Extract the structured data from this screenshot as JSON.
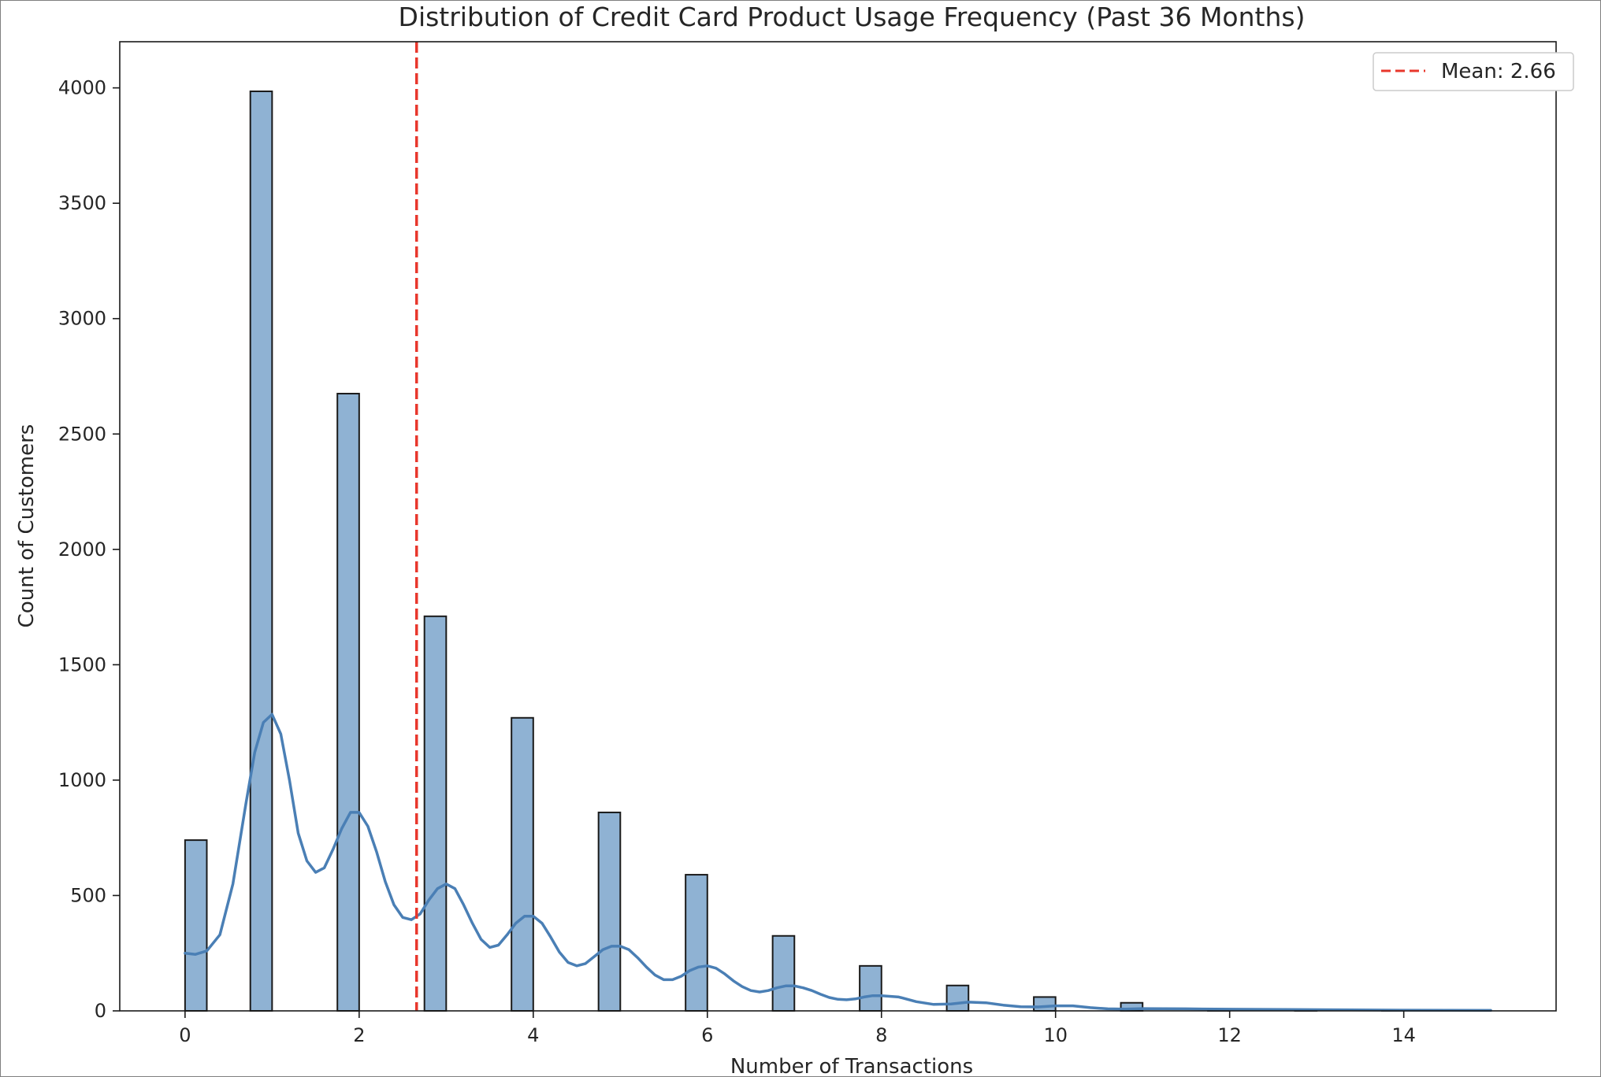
{
  "chart_data": {
    "type": "histogram",
    "title": "Distribution of Credit Card Product Usage Frequency (Past 36 Months)",
    "xlabel": "Number of Transactions",
    "ylabel": "Count of Customers",
    "xlim": [
      -0.75,
      15.75
    ],
    "ylim": [
      0,
      4200
    ],
    "xticks": [
      0,
      2,
      4,
      6,
      8,
      10,
      12,
      14
    ],
    "yticks": [
      0,
      500,
      1000,
      1500,
      2000,
      2500,
      3000,
      3500,
      4000
    ],
    "grid": false,
    "bar_color": "#8fb2d3",
    "bar_edge_color": "#1a1a1a",
    "kde_color": "#4a7fb5",
    "bins": [
      {
        "x0": 0,
        "x1": 0.25,
        "count": 740
      },
      {
        "x0": 0.75,
        "x1": 1.0,
        "count": 3985
      },
      {
        "x0": 1.75,
        "x1": 2.0,
        "count": 2675
      },
      {
        "x0": 2.75,
        "x1": 3.0,
        "count": 1710
      },
      {
        "x0": 3.75,
        "x1": 4.0,
        "count": 1270
      },
      {
        "x0": 4.75,
        "x1": 5.0,
        "count": 860
      },
      {
        "x0": 5.75,
        "x1": 6.0,
        "count": 590
      },
      {
        "x0": 6.75,
        "x1": 7.0,
        "count": 325
      },
      {
        "x0": 7.75,
        "x1": 8.0,
        "count": 195
      },
      {
        "x0": 8.75,
        "x1": 9.0,
        "count": 110
      },
      {
        "x0": 9.75,
        "x1": 10.0,
        "count": 60
      },
      {
        "x0": 10.75,
        "x1": 11.0,
        "count": 35
      },
      {
        "x0": 11.75,
        "x1": 12.0,
        "count": 8
      },
      {
        "x0": 12.75,
        "x1": 13.0,
        "count": 3
      },
      {
        "x0": 13.75,
        "x1": 14.0,
        "count": 2
      },
      {
        "x0": 14.75,
        "x1": 15.0,
        "count": 1
      }
    ],
    "kde": {
      "x": [
        0,
        0.12,
        0.25,
        0.4,
        0.55,
        0.7,
        0.8,
        0.9,
        1.0,
        1.1,
        1.2,
        1.3,
        1.4,
        1.5,
        1.6,
        1.7,
        1.8,
        1.9,
        2.0,
        2.1,
        2.2,
        2.3,
        2.4,
        2.5,
        2.6,
        2.7,
        2.8,
        2.9,
        3.0,
        3.1,
        3.2,
        3.3,
        3.4,
        3.5,
        3.6,
        3.7,
        3.8,
        3.9,
        4.0,
        4.1,
        4.2,
        4.3,
        4.4,
        4.5,
        4.6,
        4.7,
        4.8,
        4.9,
        5.0,
        5.1,
        5.2,
        5.3,
        5.4,
        5.5,
        5.6,
        5.7,
        5.8,
        5.9,
        6.0,
        6.1,
        6.2,
        6.3,
        6.4,
        6.5,
        6.6,
        6.7,
        6.8,
        6.9,
        7.0,
        7.1,
        7.2,
        7.3,
        7.4,
        7.5,
        7.6,
        7.7,
        7.8,
        7.9,
        8.0,
        8.2,
        8.4,
        8.6,
        8.8,
        9.0,
        9.2,
        9.4,
        9.6,
        9.8,
        10.0,
        10.2,
        10.4,
        10.6,
        10.8,
        11.0,
        11.5,
        12.0,
        13.0,
        14.0,
        15.0
      ],
      "y": [
        250,
        245,
        260,
        330,
        550,
        900,
        1120,
        1250,
        1285,
        1200,
        1000,
        770,
        650,
        600,
        620,
        700,
        790,
        860,
        860,
        800,
        690,
        560,
        460,
        405,
        395,
        420,
        480,
        530,
        550,
        530,
        460,
        380,
        310,
        275,
        285,
        330,
        380,
        410,
        410,
        380,
        320,
        255,
        210,
        195,
        205,
        235,
        265,
        280,
        280,
        265,
        230,
        190,
        155,
        135,
        135,
        150,
        175,
        190,
        195,
        185,
        160,
        130,
        105,
        88,
        82,
        88,
        100,
        108,
        108,
        100,
        88,
        72,
        58,
        50,
        48,
        52,
        60,
        66,
        66,
        60,
        40,
        28,
        30,
        38,
        35,
        25,
        18,
        17,
        22,
        22,
        14,
        9,
        8,
        10,
        9,
        7,
        5,
        3,
        2
      ]
    },
    "mean": {
      "value": 2.66,
      "label": "Mean: 2.66",
      "color": "#e8372c"
    },
    "legend": {
      "placement": "top-right"
    }
  }
}
